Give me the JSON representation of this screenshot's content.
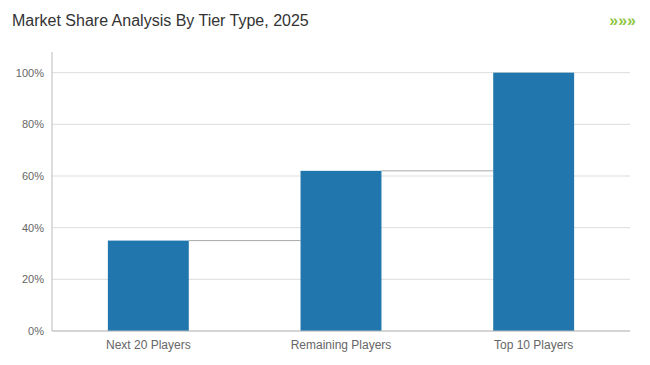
{
  "chart_data": {
    "type": "bar",
    "title": "Market Share Analysis By Tier Type, 2025",
    "annotations": [
      "»»»"
    ],
    "categories": [
      "Next 20 Players",
      "Remaining Players",
      "Top 10 Players"
    ],
    "values": [
      35,
      62,
      100
    ],
    "color": "#2176ae",
    "ylim": [
      0,
      108
    ],
    "yticks": [
      {
        "value": 0,
        "label": "0%"
      },
      {
        "value": 20,
        "label": "20%"
      },
      {
        "value": 40,
        "label": "40%"
      },
      {
        "value": 60,
        "label": "60%"
      },
      {
        "value": 80,
        "label": "80%"
      },
      {
        "value": 100,
        "label": "100%"
      }
    ],
    "grid": true
  }
}
